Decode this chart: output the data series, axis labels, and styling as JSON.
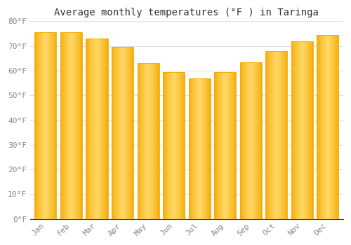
{
  "title": "Average monthly temperatures (°F ) in Taringa",
  "months": [
    "Jan",
    "Feb",
    "Mar",
    "Apr",
    "May",
    "Jun",
    "Jul",
    "Aug",
    "Sep",
    "Oct",
    "Nov",
    "Dec"
  ],
  "values": [
    75.5,
    75.5,
    73.0,
    69.5,
    63.0,
    59.5,
    57.0,
    59.5,
    63.5,
    68.0,
    72.0,
    74.5
  ],
  "bar_color_center": "#FFD966",
  "bar_color_edge": "#F5A800",
  "bar_edge_outer": "#C8860A",
  "background_color": "#FFFFFF",
  "plot_bg_color": "#FFFFFF",
  "ylim": [
    0,
    80
  ],
  "yticks": [
    0,
    10,
    20,
    30,
    40,
    50,
    60,
    70,
    80
  ],
  "ytick_labels": [
    "0°F",
    "10°F",
    "20°F",
    "30°F",
    "40°F",
    "50°F",
    "60°F",
    "70°F",
    "80°F"
  ],
  "grid_color": "#E0E0E0",
  "title_fontsize": 10,
  "tick_fontsize": 8,
  "tick_color": "#888888",
  "bar_width": 0.85,
  "gap_color": "#FFFFFF"
}
